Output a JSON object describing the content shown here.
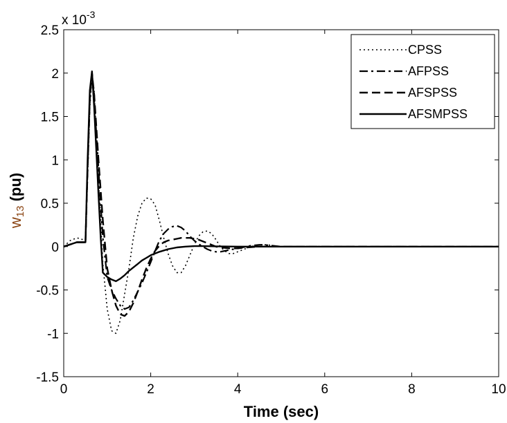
{
  "chart_data": {
    "type": "line",
    "title": "",
    "xlabel": "Time (sec)",
    "ylabel_main": "w",
    "ylabel_sub": "13",
    "ylabel_unit": " (pu)",
    "exponent_label": "x 10",
    "exponent_power": "-3",
    "xlim": [
      0,
      10
    ],
    "ylim": [
      -1.5,
      2.5
    ],
    "x_ticks": [
      "0",
      "2",
      "4",
      "6",
      "8",
      "10"
    ],
    "y_ticks": [
      "-1.5",
      "-1",
      "-0.5",
      "0",
      "0.5",
      "1",
      "1.5",
      "2",
      "2.5"
    ],
    "grid": false,
    "legend_position": "top-right",
    "colors": {
      "line": "#000000",
      "ylabel_main": "#8b4513",
      "background": "#ffffff"
    },
    "series": [
      {
        "name": "CPSS",
        "style": "dotted",
        "x": [
          0,
          0.15,
          0.3,
          0.4,
          0.5,
          0.55,
          0.6,
          0.65,
          0.7,
          0.8,
          0.85,
          0.9,
          1.0,
          1.1,
          1.2,
          1.3,
          1.4,
          1.5,
          1.6,
          1.7,
          1.8,
          1.9,
          2.0,
          2.1,
          2.2,
          2.3,
          2.4,
          2.5,
          2.6,
          2.7,
          2.8,
          2.9,
          3.0,
          3.1,
          3.2,
          3.3,
          3.4,
          3.5,
          3.6,
          3.7,
          3.8,
          3.9,
          4.0,
          4.1,
          4.2,
          4.3,
          4.4,
          4.5,
          4.6,
          4.7,
          4.8,
          4.9,
          5.0,
          5.1,
          5.2,
          5.3,
          5.4,
          5.5,
          5.7,
          6.0,
          7.0,
          8.0,
          10.0
        ],
        "y": [
          0,
          0.07,
          0.1,
          0.09,
          0.06,
          0.8,
          1.6,
          1.95,
          1.8,
          0.8,
          0.3,
          -0.2,
          -0.72,
          -0.97,
          -1.0,
          -0.85,
          -0.55,
          -0.25,
          0.1,
          0.35,
          0.5,
          0.56,
          0.55,
          0.48,
          0.3,
          0.1,
          -0.08,
          -0.22,
          -0.3,
          -0.3,
          -0.22,
          -0.1,
          0.02,
          0.12,
          0.17,
          0.18,
          0.15,
          0.08,
          0.0,
          -0.05,
          -0.08,
          -0.08,
          -0.06,
          -0.04,
          -0.02,
          0.0,
          0.01,
          0.02,
          0.02,
          0.02,
          0.01,
          0.005,
          0,
          0,
          0,
          0,
          0,
          0,
          0,
          0,
          0,
          0,
          0
        ]
      },
      {
        "name": "AFPSS",
        "style": "dashdot",
        "x": [
          0,
          0.3,
          0.5,
          0.55,
          0.6,
          0.65,
          0.7,
          0.8,
          0.9,
          1.0,
          1.1,
          1.2,
          1.3,
          1.4,
          1.5,
          1.6,
          1.7,
          1.8,
          1.9,
          2.0,
          2.1,
          2.2,
          2.3,
          2.4,
          2.5,
          2.6,
          2.7,
          2.8,
          2.9,
          3.0,
          3.1,
          3.2,
          3.3,
          3.4,
          3.5,
          3.6,
          3.7,
          3.8,
          3.9,
          4.0,
          4.1,
          4.2,
          4.3,
          4.4,
          4.5,
          4.6,
          4.8,
          5.0,
          5.2,
          5.5,
          6.0,
          7.0,
          8.0,
          10.0
        ],
        "y": [
          0,
          0.05,
          0.05,
          0.9,
          1.7,
          2.0,
          1.7,
          0.9,
          0.1,
          -0.35,
          -0.5,
          -0.6,
          -0.68,
          -0.72,
          -0.7,
          -0.62,
          -0.52,
          -0.42,
          -0.3,
          -0.18,
          -0.05,
          0.07,
          0.15,
          0.2,
          0.23,
          0.24,
          0.22,
          0.18,
          0.12,
          0.07,
          0.03,
          0.0,
          -0.03,
          -0.05,
          -0.06,
          -0.06,
          -0.05,
          -0.04,
          -0.03,
          -0.02,
          -0.01,
          0.0,
          0.01,
          0.015,
          0.02,
          0.02,
          0.01,
          0.0,
          0.0,
          0,
          0,
          0,
          0,
          0
        ]
      },
      {
        "name": "AFSPSS",
        "style": "dashed",
        "x": [
          0,
          0.3,
          0.5,
          0.55,
          0.6,
          0.65,
          0.7,
          0.8,
          0.9,
          1.0,
          1.1,
          1.2,
          1.3,
          1.4,
          1.5,
          1.6,
          1.7,
          1.8,
          1.9,
          2.0,
          2.1,
          2.2,
          2.3,
          2.4,
          2.5,
          2.6,
          2.7,
          2.8,
          2.9,
          3.0,
          3.1,
          3.2,
          3.3,
          3.4,
          3.5,
          3.6,
          3.7,
          3.8,
          3.9,
          4.0,
          4.2,
          4.5,
          5.0,
          6.0,
          8.0,
          10.0
        ],
        "y": [
          0,
          0.05,
          0.05,
          0.9,
          1.7,
          2.0,
          1.75,
          1.0,
          0.3,
          -0.25,
          -0.5,
          -0.68,
          -0.78,
          -0.8,
          -0.75,
          -0.65,
          -0.52,
          -0.38,
          -0.25,
          -0.14,
          -0.05,
          0.01,
          0.05,
          0.07,
          0.08,
          0.09,
          0.1,
          0.1,
          0.1,
          0.09,
          0.08,
          0.06,
          0.04,
          0.02,
          0.0,
          -0.01,
          -0.015,
          -0.02,
          -0.02,
          -0.02,
          -0.01,
          0.0,
          0,
          0,
          0,
          0
        ]
      },
      {
        "name": "AFSMPSS",
        "style": "solid",
        "x": [
          0,
          0.3,
          0.5,
          0.55,
          0.6,
          0.65,
          0.7,
          0.8,
          0.85,
          0.9,
          1.0,
          1.1,
          1.2,
          1.3,
          1.4,
          1.5,
          1.6,
          1.7,
          1.8,
          1.9,
          2.0,
          2.2,
          2.4,
          2.6,
          2.8,
          3.0,
          3.2,
          3.5,
          4.0,
          5.0,
          6.0,
          8.0,
          10.0
        ],
        "y": [
          0,
          0.05,
          0.05,
          1.0,
          1.8,
          2.02,
          1.6,
          0.6,
          0.1,
          -0.3,
          -0.35,
          -0.38,
          -0.4,
          -0.37,
          -0.33,
          -0.28,
          -0.24,
          -0.2,
          -0.16,
          -0.13,
          -0.1,
          -0.06,
          -0.03,
          -0.01,
          0.0,
          0.005,
          0.005,
          0.003,
          0.0,
          0,
          0,
          0,
          0
        ]
      }
    ]
  }
}
